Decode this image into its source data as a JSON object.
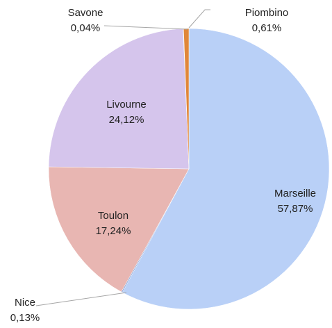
{
  "chart_data": {
    "type": "pie",
    "categories": [
      "Marseille",
      "Nice",
      "Toulon",
      "Livourne",
      "Savone",
      "Piombino"
    ],
    "values": [
      57.87,
      0.13,
      17.24,
      24.12,
      0.04,
      0.61
    ],
    "value_labels": [
      "57,87%",
      "0,13%",
      "17,24%",
      "24,12%",
      "0,04%",
      "0,61%"
    ],
    "colors": [
      "#b9d0f7",
      "#8fa8d8",
      "#e8b6b2",
      "#d5c5ec",
      "#c9c9c9",
      "#e0873a"
    ]
  }
}
